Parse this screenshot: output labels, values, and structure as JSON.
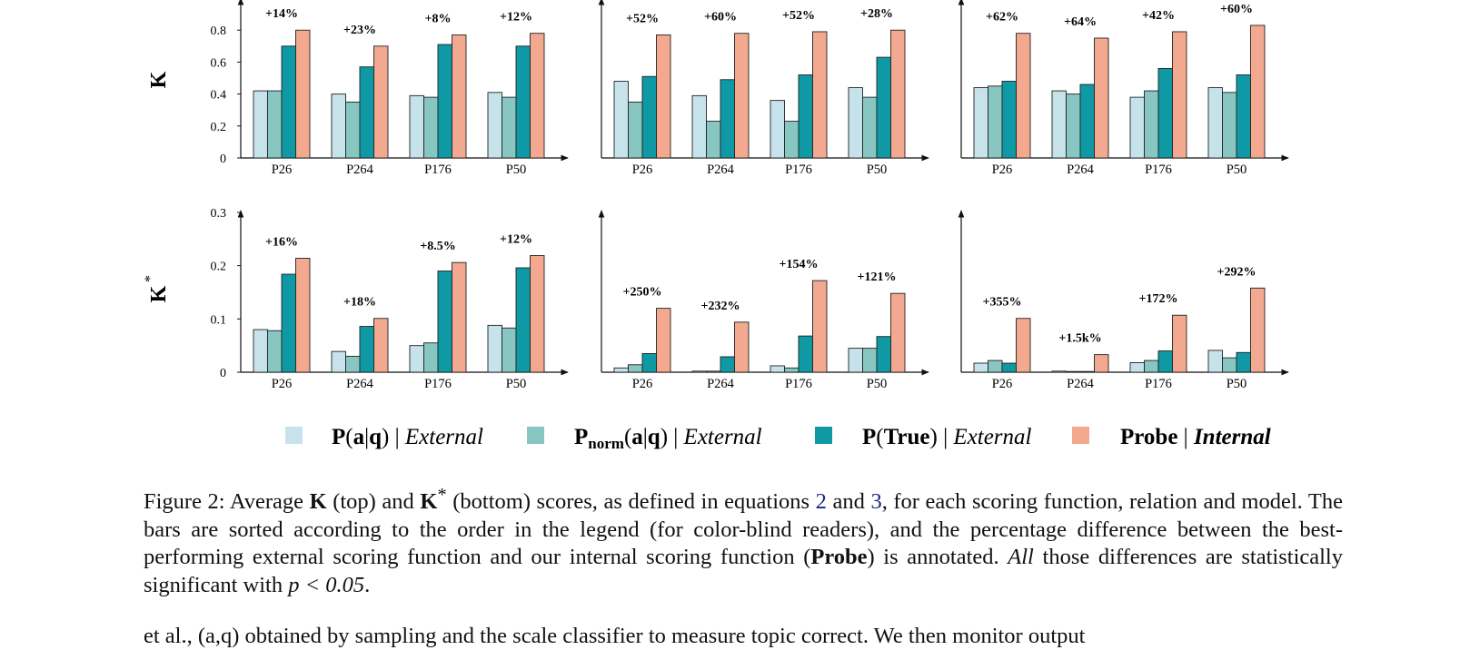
{
  "row_labels": [
    "K",
    "K*"
  ],
  "legend": [
    {
      "label": "P(a|q) | External",
      "color": "#c6e3ec"
    },
    {
      "label": "Pnorm(a|q) | External",
      "color": "#87c6c1"
    },
    {
      "label": "P(True) | External",
      "color": "#0e99a5"
    },
    {
      "label": "Probe | Internal",
      "color": "#f2a98f"
    }
  ],
  "caption": {
    "lead": "Figure 2: Average ",
    "k": "K",
    "mid1": " (top) and ",
    "kstar": "K",
    "mid2": " (bottom) scores, as defined in equations ",
    "ref1": "2",
    "mid3": " and ",
    "ref2": "3",
    "mid4": ", for each scoring function, relation and model. The bars are sorted according to the order in the legend (for color-blind readers), and the percentage difference between the best-performing external scoring function and our internal scoring function (",
    "probe": "Probe",
    "mid5": ") is annotated. ",
    "all": "All",
    "tail": " those differences are statistically significant with ",
    "pval": "p < 0.05",
    "end": "."
  },
  "body_text_partial": "et al., (a,q) obtained by sampling and the scale classifier to measure topic correct. We then monitor output",
  "chart_data": [
    {
      "type": "bar",
      "row": "K",
      "panel": 1,
      "categories": [
        "P26",
        "P264",
        "P176",
        "P50"
      ],
      "series": [
        {
          "name": "P(a|q) | External",
          "values": [
            0.42,
            0.4,
            0.39,
            0.41
          ]
        },
        {
          "name": "Pnorm(a|q) | External",
          "values": [
            0.42,
            0.35,
            0.38,
            0.38
          ]
        },
        {
          "name": "P(True) | External",
          "values": [
            0.7,
            0.57,
            0.71,
            0.7
          ]
        },
        {
          "name": "Probe | Internal",
          "values": [
            0.8,
            0.7,
            0.77,
            0.78
          ]
        }
      ],
      "annotations": [
        "+14%",
        "+23%",
        "+8%",
        "+12%"
      ],
      "yticks": [
        "0",
        "0.2",
        "0.4",
        "0.6",
        "0.8"
      ],
      "ylim": [
        0,
        1.0
      ]
    },
    {
      "type": "bar",
      "row": "K",
      "panel": 2,
      "categories": [
        "P26",
        "P264",
        "P176",
        "P50"
      ],
      "series": [
        {
          "name": "P(a|q) | External",
          "values": [
            0.48,
            0.39,
            0.36,
            0.44
          ]
        },
        {
          "name": "Pnorm(a|q) | External",
          "values": [
            0.35,
            0.23,
            0.23,
            0.38
          ]
        },
        {
          "name": "P(True) | External",
          "values": [
            0.51,
            0.49,
            0.52,
            0.63
          ]
        },
        {
          "name": "Probe | Internal",
          "values": [
            0.77,
            0.78,
            0.79,
            0.8
          ]
        }
      ],
      "annotations": [
        "+52%",
        "+60%",
        "+52%",
        "+28%"
      ],
      "ylim": [
        0,
        1.0
      ]
    },
    {
      "type": "bar",
      "row": "K",
      "panel": 3,
      "categories": [
        "P26",
        "P264",
        "P176",
        "P50"
      ],
      "series": [
        {
          "name": "P(a|q) | External",
          "values": [
            0.44,
            0.42,
            0.38,
            0.44
          ]
        },
        {
          "name": "Pnorm(a|q) | External",
          "values": [
            0.45,
            0.4,
            0.42,
            0.41
          ]
        },
        {
          "name": "P(True) | External",
          "values": [
            0.48,
            0.46,
            0.56,
            0.52
          ]
        },
        {
          "name": "Probe | Internal",
          "values": [
            0.78,
            0.75,
            0.79,
            0.83
          ]
        }
      ],
      "annotations": [
        "+62%",
        "+64%",
        "+42%",
        "+60%"
      ],
      "ylim": [
        0,
        1.0
      ]
    },
    {
      "type": "bar",
      "row": "K*",
      "panel": 1,
      "categories": [
        "P26",
        "P264",
        "P176",
        "P50"
      ],
      "series": [
        {
          "name": "P(a|q) | External",
          "values": [
            0.08,
            0.039,
            0.05,
            0.088
          ]
        },
        {
          "name": "Pnorm(a|q) | External",
          "values": [
            0.078,
            0.03,
            0.055,
            0.083
          ]
        },
        {
          "name": "P(True) | External",
          "values": [
            0.184,
            0.086,
            0.19,
            0.196
          ]
        },
        {
          "name": "Probe | Internal",
          "values": [
            0.214,
            0.101,
            0.206,
            0.219
          ]
        }
      ],
      "annotations": [
        "+16%",
        "+18%",
        "+8.5%",
        "+12%"
      ],
      "yticks": [
        "0",
        "0.1",
        "0.2",
        "0.3"
      ],
      "ylim": [
        0,
        0.3
      ]
    },
    {
      "type": "bar",
      "row": "K*",
      "panel": 2,
      "categories": [
        "P26",
        "P264",
        "P176",
        "P50"
      ],
      "series": [
        {
          "name": "P(a|q) | External",
          "values": [
            0.008,
            0.002,
            0.012,
            0.045
          ]
        },
        {
          "name": "Pnorm(a|q) | External",
          "values": [
            0.014,
            0.002,
            0.008,
            0.045
          ]
        },
        {
          "name": "P(True) | External",
          "values": [
            0.035,
            0.029,
            0.068,
            0.067
          ]
        },
        {
          "name": "Probe | Internal",
          "values": [
            0.12,
            0.094,
            0.172,
            0.148
          ]
        }
      ],
      "annotations": [
        "+250%",
        "+232%",
        "+154%",
        "+121%"
      ],
      "ylim": [
        0,
        0.3
      ]
    },
    {
      "type": "bar",
      "row": "K*",
      "panel": 3,
      "categories": [
        "P26",
        "P264",
        "P176",
        "P50"
      ],
      "series": [
        {
          "name": "P(a|q) | External",
          "values": [
            0.017,
            0.002,
            0.018,
            0.041
          ]
        },
        {
          "name": "Pnorm(a|q) | External",
          "values": [
            0.022,
            0.001,
            0.022,
            0.027
          ]
        },
        {
          "name": "P(True) | External",
          "values": [
            0.017,
            0.001,
            0.04,
            0.037
          ]
        },
        {
          "name": "Probe | Internal",
          "values": [
            0.101,
            0.033,
            0.107,
            0.158
          ]
        }
      ],
      "annotations": [
        "+355%",
        "+1.5k%",
        "+172%",
        "+292%"
      ],
      "ylim": [
        0,
        0.3
      ]
    }
  ]
}
